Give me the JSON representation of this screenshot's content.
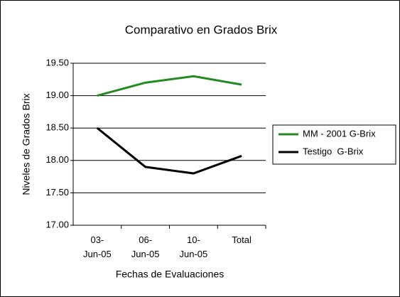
{
  "chart_data": {
    "type": "line",
    "title": "Comparativo en Grados Brix",
    "x_label": "Fechas de Evaluaciones",
    "y_label": "Niveles de Grados Brix",
    "categories": [
      "03-Jun-05",
      "06-Jun-05",
      "10-Jun-05",
      "Total"
    ],
    "series": [
      {
        "name": "MM - 2001 G-Brix",
        "color": "#228b22",
        "values": [
          19.0,
          19.2,
          19.3,
          19.17
        ]
      },
      {
        "name": "Testigo  G-Brix",
        "color": "#000000",
        "values": [
          18.5,
          17.9,
          17.8,
          18.07
        ]
      }
    ],
    "ylim": [
      17,
      19.5
    ],
    "yticks": [
      {
        "value": 17,
        "label": "17.00"
      },
      {
        "value": 17.5,
        "label": "17.50"
      },
      {
        "value": 18,
        "label": "18.00"
      },
      {
        "value": 18.5,
        "label": "18.50"
      },
      {
        "value": 19,
        "label": "19.00"
      },
      {
        "value": 19.5,
        "label": "19.50"
      }
    ],
    "grid": true,
    "legend": "right"
  }
}
